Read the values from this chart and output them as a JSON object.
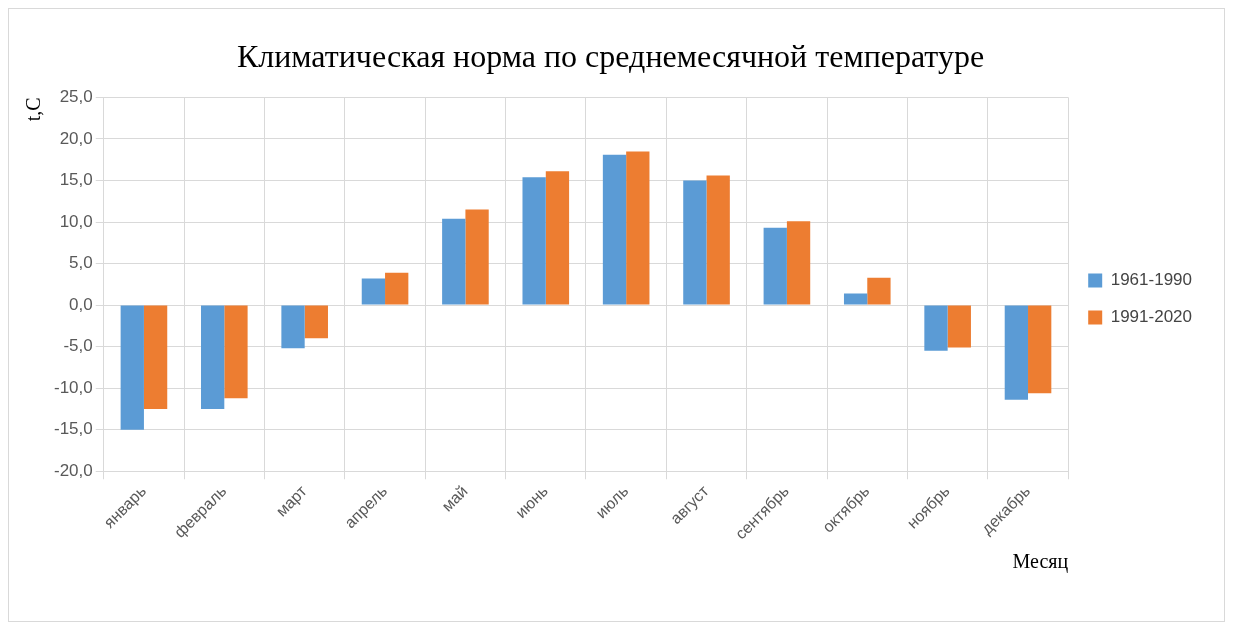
{
  "chart_data": {
    "type": "bar",
    "title": "Климатическая норма по среднемесячной температуре",
    "xlabel": "Месяц",
    "ylabel": "t,C",
    "categories": [
      "январь",
      "февраль",
      "март",
      "апрель",
      "май",
      "июнь",
      "июль",
      "август",
      "сентябрь",
      "октябрь",
      "ноябрь",
      "декабрь"
    ],
    "series": [
      {
        "name": "1961-1990",
        "color": "#5b9bd5",
        "values": [
          -15.0,
          -12.5,
          -5.2,
          3.2,
          10.4,
          15.4,
          18.1,
          15.0,
          9.3,
          1.4,
          -5.5,
          -11.4
        ]
      },
      {
        "name": "1991-2020",
        "color": "#ed7d31",
        "values": [
          -12.5,
          -11.2,
          -4.0,
          3.9,
          11.5,
          16.1,
          18.5,
          15.6,
          10.1,
          3.3,
          -5.1,
          -10.6
        ]
      }
    ],
    "ylim": [
      -20,
      25
    ],
    "yticks": [
      {
        "value": -20,
        "label": "-20,0"
      },
      {
        "value": -15,
        "label": "-15,0"
      },
      {
        "value": -10,
        "label": "-10,0"
      },
      {
        "value": -5,
        "label": "-5,0"
      },
      {
        "value": 0,
        "label": "0,0"
      },
      {
        "value": 5,
        "label": "5,0"
      },
      {
        "value": 10,
        "label": "10,0"
      },
      {
        "value": 15,
        "label": "15,0"
      },
      {
        "value": 20,
        "label": "20,0"
      },
      {
        "value": 25,
        "label": "25,0"
      }
    ],
    "grid": true,
    "legend": "right"
  }
}
